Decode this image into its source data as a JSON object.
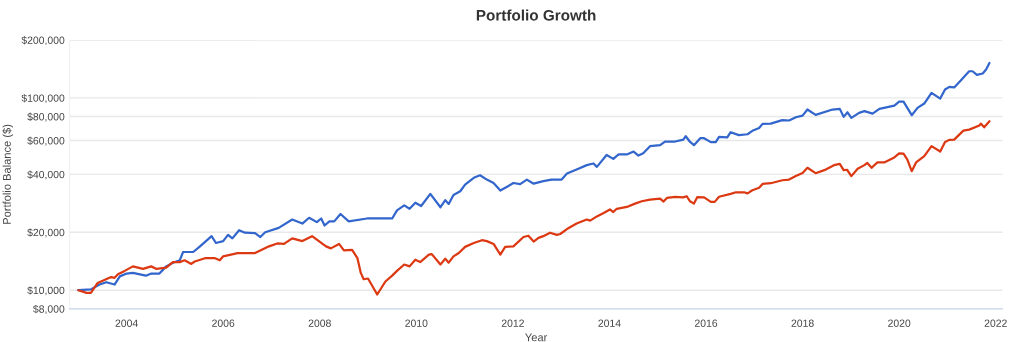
{
  "chart_data": {
    "type": "line",
    "title": "Portfolio Growth",
    "xlabel": "Year",
    "ylabel": "Portfolio Balance ($)",
    "log": "y",
    "grid": "y",
    "xlim": [
      2002.82,
      2022.14
    ],
    "xticks": [
      2004,
      2006,
      2008,
      2010,
      2012,
      2014,
      2016,
      2018,
      2020,
      2022
    ],
    "ylim": [
      8000,
      200000
    ],
    "yticks": [
      {
        "value": 8000,
        "label": "$8,000"
      },
      {
        "value": 10000,
        "label": "$10,000"
      },
      {
        "value": 20000,
        "label": "$20,000"
      },
      {
        "value": 40000,
        "label": "$40,000"
      },
      {
        "value": 60000,
        "label": "$60,000"
      },
      {
        "value": 80000,
        "label": "$80,000"
      },
      {
        "value": 100000,
        "label": "$100,000"
      },
      {
        "value": 200000,
        "label": "$200,000"
      }
    ],
    "series": [
      {
        "color": "#3366cc",
        "x": [
          2003.0,
          2003.26,
          2003.44,
          2003.58,
          2003.75,
          2003.86,
          2004.0,
          2004.13,
          2004.4,
          2004.51,
          2004.68,
          2004.82,
          2004.96,
          2005.1,
          2005.17,
          2005.38,
          2005.52,
          2005.76,
          2005.85,
          2006.0,
          2006.1,
          2006.19,
          2006.33,
          2006.45,
          2006.66,
          2006.77,
          2006.87,
          2007.15,
          2007.43,
          2007.64,
          2007.78,
          2007.94,
          2008.03,
          2008.1,
          2008.2,
          2008.3,
          2008.43,
          2008.6,
          2008.98,
          2009.5,
          2009.6,
          2009.75,
          2009.86,
          2009.98,
          2010.1,
          2010.29,
          2010.5,
          2010.6,
          2010.67,
          2010.77,
          2010.91,
          2011.01,
          2011.19,
          2011.32,
          2011.46,
          2011.6,
          2011.74,
          2011.88,
          2012.01,
          2012.15,
          2012.29,
          2012.43,
          2012.63,
          2012.8,
          2013.01,
          2013.12,
          2013.32,
          2013.53,
          2013.67,
          2013.74,
          2013.94,
          2014.08,
          2014.19,
          2014.36,
          2014.5,
          2014.6,
          2014.7,
          2014.84,
          2015.05,
          2015.15,
          2015.36,
          2015.53,
          2015.58,
          2015.67,
          2015.75,
          2015.88,
          2015.96,
          2016.1,
          2016.2,
          2016.27,
          2016.44,
          2016.51,
          2016.68,
          2016.86,
          2016.96,
          2017.1,
          2017.17,
          2017.34,
          2017.58,
          2017.72,
          2017.86,
          2018.0,
          2018.1,
          2018.27,
          2018.62,
          2018.77,
          2018.85,
          2018.93,
          2019.01,
          2019.17,
          2019.28,
          2019.45,
          2019.59,
          2019.9,
          2020.0,
          2020.09,
          2020.26,
          2020.38,
          2020.52,
          2020.67,
          2020.85,
          2020.95,
          2021.04,
          2021.14,
          2021.28,
          2021.45,
          2021.52,
          2021.61,
          2021.73,
          2021.8,
          2021.87
        ],
        "values": [
          10000,
          10100,
          10700,
          11000,
          10700,
          11800,
          12200,
          12300,
          11900,
          12200,
          12200,
          13300,
          13900,
          14300,
          15800,
          15800,
          16900,
          19100,
          17600,
          18000,
          19400,
          18600,
          20500,
          19900,
          19800,
          18900,
          20000,
          21100,
          23300,
          22200,
          23800,
          22600,
          23600,
          21700,
          22800,
          22800,
          24900,
          22800,
          23600,
          23600,
          26000,
          27600,
          26500,
          28500,
          27400,
          31700,
          27000,
          29400,
          28100,
          31300,
          32700,
          35400,
          38400,
          39600,
          37600,
          36100,
          33000,
          34500,
          36100,
          35600,
          37600,
          35800,
          36900,
          37600,
          37600,
          40400,
          42400,
          44700,
          45600,
          43800,
          50500,
          48200,
          50800,
          50800,
          52600,
          50100,
          51500,
          56100,
          56800,
          59300,
          59300,
          60700,
          63200,
          59000,
          56800,
          61700,
          61700,
          58900,
          58900,
          62700,
          62300,
          66300,
          64000,
          64700,
          67400,
          69800,
          73300,
          73500,
          76600,
          76300,
          79300,
          80900,
          87000,
          81600,
          87000,
          87700,
          79700,
          84200,
          78700,
          83600,
          85300,
          82900,
          87700,
          91200,
          95700,
          95700,
          81300,
          88700,
          93500,
          106200,
          99200,
          110500,
          114100,
          113300,
          123600,
          137600,
          137600,
          131700,
          134000,
          140400,
          152000
        ]
      },
      {
        "color": "#dc3912",
        "x": [
          2003.0,
          2003.17,
          2003.26,
          2003.4,
          2003.54,
          2003.68,
          2003.75,
          2003.82,
          2003.96,
          2004.13,
          2004.34,
          2004.51,
          2004.62,
          2004.82,
          2004.96,
          2005.1,
          2005.2,
          2005.34,
          2005.41,
          2005.64,
          2005.82,
          2005.93,
          2006.0,
          2006.3,
          2006.45,
          2006.66,
          2006.95,
          2007.12,
          2007.26,
          2007.43,
          2007.64,
          2007.84,
          2007.94,
          2008.13,
          2008.23,
          2008.4,
          2008.5,
          2008.67,
          2008.78,
          2008.85,
          2008.91,
          2009.0,
          2009.19,
          2009.36,
          2009.5,
          2009.6,
          2009.75,
          2009.86,
          2009.98,
          2010.08,
          2010.26,
          2010.32,
          2010.5,
          2010.6,
          2010.67,
          2010.77,
          2010.88,
          2011.01,
          2011.19,
          2011.36,
          2011.46,
          2011.6,
          2011.74,
          2011.84,
          2012.01,
          2012.22,
          2012.32,
          2012.43,
          2012.53,
          2012.63,
          2012.77,
          2012.91,
          2012.98,
          2013.12,
          2013.32,
          2013.53,
          2013.6,
          2013.74,
          2013.88,
          2014.01,
          2014.08,
          2014.15,
          2014.36,
          2014.53,
          2014.67,
          2014.84,
          2015.05,
          2015.12,
          2015.19,
          2015.36,
          2015.53,
          2015.6,
          2015.67,
          2015.75,
          2015.82,
          2015.96,
          2016.1,
          2016.18,
          2016.27,
          2016.51,
          2016.62,
          2016.79,
          2016.86,
          2016.96,
          2017.1,
          2017.17,
          2017.34,
          2017.58,
          2017.72,
          2017.86,
          2018.0,
          2018.1,
          2018.27,
          2018.45,
          2018.65,
          2018.77,
          2018.85,
          2018.92,
          2019.01,
          2019.14,
          2019.28,
          2019.34,
          2019.43,
          2019.55,
          2019.69,
          2019.9,
          2020.0,
          2020.09,
          2020.17,
          2020.26,
          2020.35,
          2020.52,
          2020.67,
          2020.85,
          2020.95,
          2021.04,
          2021.14,
          2021.33,
          2021.45,
          2021.66,
          2021.69,
          2021.76,
          2021.87
        ],
        "values": [
          10000,
          9690,
          9690,
          10900,
          11300,
          11700,
          11600,
          12100,
          12600,
          13300,
          12900,
          13300,
          12900,
          13100,
          14000,
          14000,
          14300,
          13700,
          14100,
          14700,
          14700,
          14300,
          15000,
          15600,
          15600,
          15600,
          16900,
          17500,
          17400,
          18600,
          18000,
          19100,
          18300,
          16900,
          16500,
          17400,
          16100,
          16200,
          14700,
          12300,
          11400,
          11500,
          9500,
          11100,
          11900,
          12600,
          13600,
          13300,
          14400,
          14000,
          15300,
          15400,
          13600,
          14600,
          13900,
          15000,
          15600,
          16800,
          17600,
          18200,
          18000,
          17400,
          15300,
          16800,
          16900,
          18900,
          19200,
          17900,
          18700,
          19100,
          19900,
          19400,
          19600,
          20800,
          22200,
          23300,
          23000,
          24200,
          25200,
          26300,
          25500,
          26500,
          27100,
          28200,
          29000,
          29600,
          29900,
          28900,
          30200,
          30600,
          30400,
          30800,
          29000,
          28200,
          30500,
          30400,
          28800,
          28800,
          30600,
          31700,
          32300,
          32300,
          31900,
          33100,
          34100,
          35700,
          36000,
          37300,
          37600,
          39200,
          40700,
          43300,
          40600,
          42100,
          44700,
          45400,
          42100,
          42300,
          39200,
          42800,
          44700,
          45900,
          43300,
          46200,
          46200,
          49000,
          51400,
          51300,
          47800,
          41600,
          46200,
          49800,
          56100,
          52600,
          58900,
          60500,
          60700,
          67600,
          68400,
          71800,
          73500,
          70300,
          75600
        ]
      }
    ]
  }
}
